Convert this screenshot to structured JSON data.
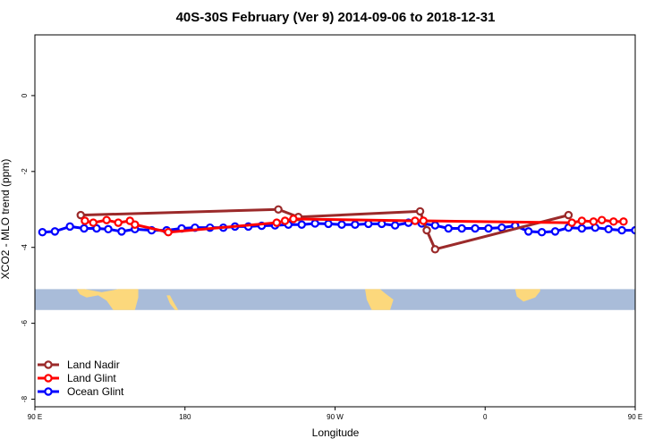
{
  "chart_data": {
    "type": "line",
    "title": "40S-30S February (Ver 9)   2014-09-06 to 2018-12-31",
    "xlabel": "Longitude",
    "ylabel": "XCO2 - MLO trend (ppm)",
    "xlim": [
      90,
      450
    ],
    "ylim": [
      -8.2,
      1.6
    ],
    "x_ticks": [
      {
        "value": 90,
        "label": "90 E"
      },
      {
        "value": 180,
        "label": "180"
      },
      {
        "value": 270,
        "label": "90 W"
      },
      {
        "value": 360,
        "label": "0"
      },
      {
        "value": 450,
        "label": "90 E"
      },
      {
        "value": 540,
        "label": "180"
      }
    ],
    "y_ticks": [
      {
        "value": 0,
        "label": "0"
      },
      {
        "value": -2,
        "label": "-2"
      },
      {
        "value": -4,
        "label": "-4"
      },
      {
        "value": -6,
        "label": "-6"
      },
      {
        "value": -8,
        "label": "-8"
      }
    ],
    "map_strip": {
      "y_top": -5.1,
      "y_bottom": -5.65,
      "ocean_color": "#a9bcd9",
      "land_color": "#fcd87c"
    },
    "legend_position": "bottom-left",
    "grid": false,
    "series": [
      {
        "name": "Land Nadir",
        "color": "#9b2a2a",
        "points": [
          [
            117.5,
            -3.15
          ],
          [
            236,
            -3.0
          ],
          [
            248,
            -3.2
          ],
          [
            321,
            -3.05
          ],
          [
            325,
            -3.55
          ],
          [
            330,
            -4.05
          ],
          [
            410,
            -3.15
          ]
        ]
      },
      {
        "name": "Land Glint",
        "color": "#ff0000",
        "points": [
          [
            120,
            -3.3
          ],
          [
            125,
            -3.35
          ],
          [
            133,
            -3.28
          ],
          [
            140,
            -3.35
          ],
          [
            147,
            -3.3
          ],
          [
            150,
            -3.4
          ],
          [
            170,
            -3.6
          ],
          [
            235,
            -3.35
          ],
          [
            240,
            -3.3
          ],
          [
            245,
            -3.25
          ],
          [
            318,
            -3.3
          ],
          [
            323,
            -3.3
          ],
          [
            412,
            -3.35
          ],
          [
            418,
            -3.3
          ],
          [
            425,
            -3.32
          ],
          [
            430,
            -3.28
          ],
          [
            437,
            -3.32
          ],
          [
            443,
            -3.32
          ]
        ]
      },
      {
        "name": "Ocean Glint",
        "color": "#0000ff",
        "points": [
          [
            94.5,
            -3.6
          ],
          [
            102,
            -3.58
          ],
          [
            111,
            -3.45
          ],
          [
            119.5,
            -3.5
          ],
          [
            127,
            -3.5
          ],
          [
            134,
            -3.52
          ],
          [
            142,
            -3.58
          ],
          [
            150,
            -3.52
          ],
          [
            160,
            -3.55
          ],
          [
            169,
            -3.55
          ],
          [
            178,
            -3.5
          ],
          [
            186,
            -3.48
          ],
          [
            195,
            -3.48
          ],
          [
            203,
            -3.48
          ],
          [
            210,
            -3.45
          ],
          [
            218,
            -3.45
          ],
          [
            226,
            -3.43
          ],
          [
            234,
            -3.42
          ],
          [
            242,
            -3.4
          ],
          [
            250,
            -3.4
          ],
          [
            258,
            -3.37
          ],
          [
            266,
            -3.38
          ],
          [
            274,
            -3.4
          ],
          [
            282,
            -3.4
          ],
          [
            290,
            -3.38
          ],
          [
            298,
            -3.38
          ],
          [
            306,
            -3.42
          ],
          [
            314,
            -3.35
          ],
          [
            322,
            -3.37
          ],
          [
            330,
            -3.42
          ],
          [
            338,
            -3.5
          ],
          [
            346,
            -3.5
          ],
          [
            354,
            -3.5
          ],
          [
            362,
            -3.5
          ],
          [
            370,
            -3.48
          ],
          [
            378,
            -3.43
          ],
          [
            386,
            -3.58
          ],
          [
            394,
            -3.6
          ],
          [
            402,
            -3.58
          ],
          [
            410,
            -3.48
          ],
          [
            418,
            -3.5
          ],
          [
            426,
            -3.48
          ],
          [
            434,
            -3.52
          ],
          [
            442,
            -3.55
          ],
          [
            450,
            -3.55
          ],
          [
            458,
            -3.58
          ],
          [
            466,
            -3.55
          ]
        ]
      }
    ]
  }
}
